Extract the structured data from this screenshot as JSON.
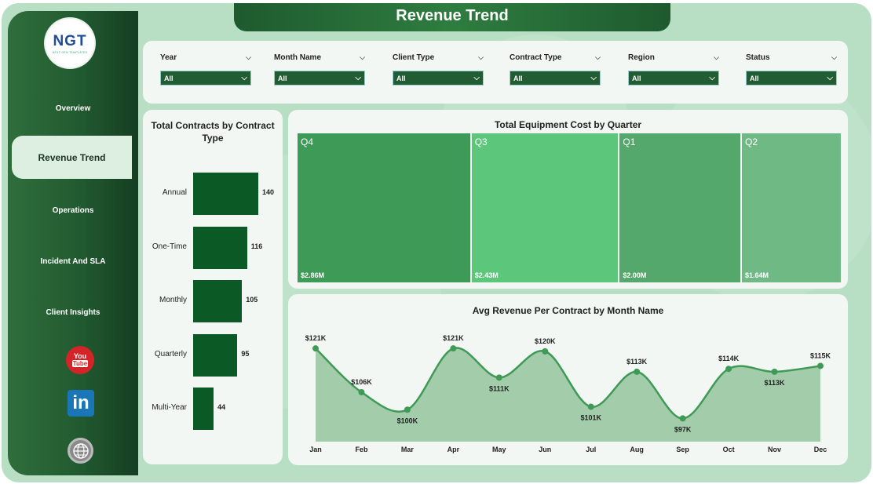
{
  "app": {
    "title": "Revenue Trend"
  },
  "logo": {
    "text": "NGT",
    "subtitle": "NEXT GEN TEMPLATES"
  },
  "sidebar": {
    "items": [
      {
        "label": "Overview"
      },
      {
        "label": "Revenue Trend",
        "active": true
      },
      {
        "label": "Operations"
      },
      {
        "label": "Incident And SLA"
      },
      {
        "label": "Client Insights"
      }
    ],
    "social": [
      {
        "icon": "youtube-icon",
        "text_top": "You",
        "text_bottom": "Tube"
      },
      {
        "icon": "linkedin-icon",
        "text": "in"
      },
      {
        "icon": "globe-icon"
      }
    ]
  },
  "filters": [
    {
      "label": "Year",
      "value": "All"
    },
    {
      "label": "Month Name",
      "value": "All"
    },
    {
      "label": "Client Type",
      "value": "All"
    },
    {
      "label": "Contract Type",
      "value": "All"
    },
    {
      "label": "Region",
      "value": "All"
    },
    {
      "label": "Status",
      "value": "All"
    }
  ],
  "colors": {
    "bar": "#0b5a26",
    "q4": "#3d9b57",
    "q3": "#5cc77a",
    "q1": "#55a86b",
    "q2": "#6fba84",
    "line": "#3f9a56",
    "area": "#a3ccab"
  },
  "chart_data": [
    {
      "type": "bar",
      "title": "Total Contracts by Contract Type",
      "orientation": "horizontal",
      "categories": [
        "Annual",
        "One-Time",
        "Monthly",
        "Quarterly",
        "Multi-Year"
      ],
      "values": [
        140,
        116,
        105,
        95,
        44
      ],
      "xlim": [
        0,
        140
      ]
    },
    {
      "type": "treemap",
      "title": "Total Equipment Cost by Quarter",
      "categories": [
        "Q4",
        "Q3",
        "Q1",
        "Q2"
      ],
      "values": [
        2.86,
        2.43,
        2.0,
        1.64
      ],
      "value_labels": [
        "$2.86M",
        "$2.43M",
        "$2.00M",
        "$1.64M"
      ]
    },
    {
      "type": "area",
      "title": "Avg Revenue Per Contract by Month Name",
      "categories": [
        "Jan",
        "Feb",
        "Mar",
        "Apr",
        "May",
        "Jun",
        "Jul",
        "Aug",
        "Sep",
        "Oct",
        "Nov",
        "Dec"
      ],
      "values": [
        121,
        106,
        100,
        121,
        111,
        120,
        101,
        113,
        97,
        114,
        113,
        115
      ],
      "value_labels": [
        "$121K",
        "$106K",
        "$100K",
        "$121K",
        "$111K",
        "$120K",
        "$101K",
        "$113K",
        "$97K",
        "$114K",
        "$113K",
        "$115K"
      ],
      "ylim": [
        92,
        124
      ],
      "grid": false
    }
  ]
}
